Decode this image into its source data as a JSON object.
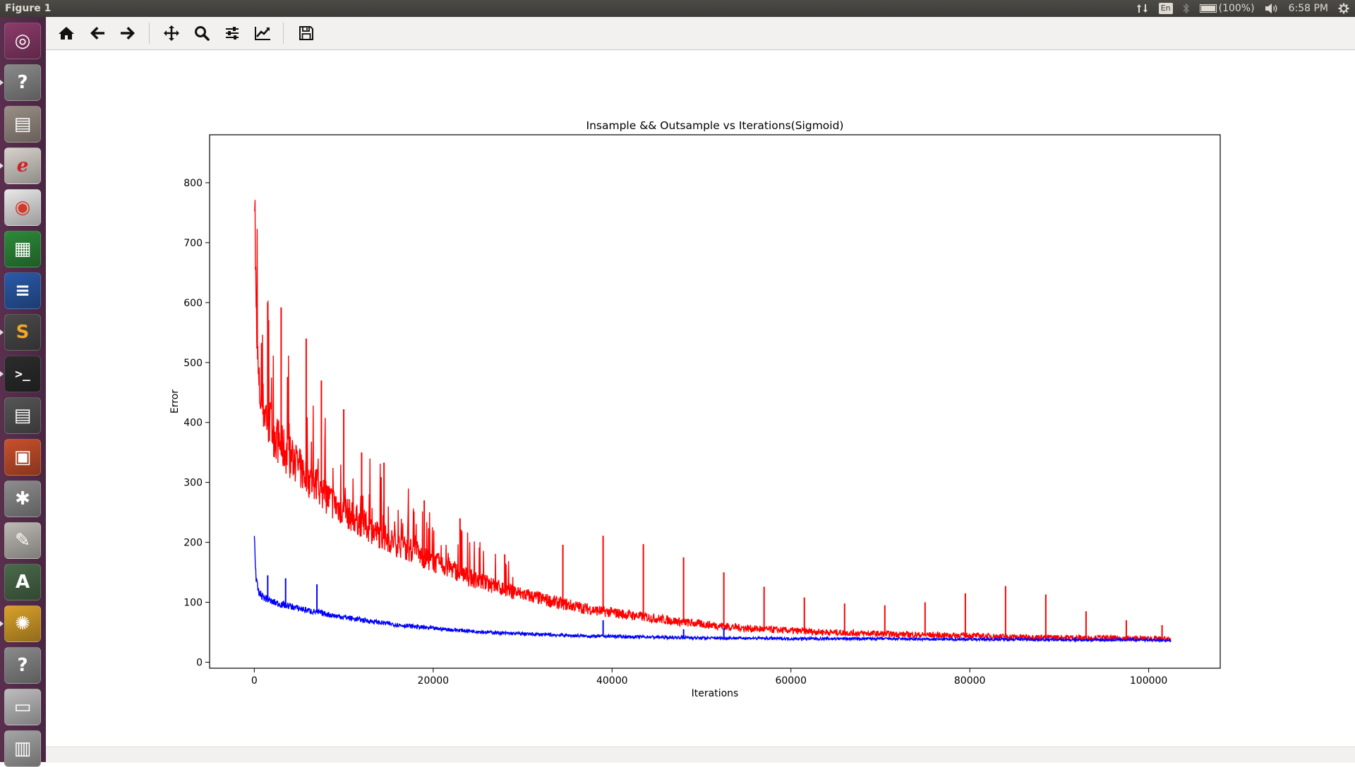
{
  "window": {
    "title": "Figure 1"
  },
  "tray": {
    "language": "En",
    "battery_text": "(100%)",
    "battery_level": 1.0,
    "time": "6:58 PM",
    "icons": [
      "network-updown-icon",
      "keyboard-language-icon",
      "bluetooth-icon",
      "battery-icon",
      "volume-icon",
      "settings-gear-icon"
    ]
  },
  "launcher": {
    "items": [
      {
        "name": "ubuntu-dash",
        "icon": "ubuntu-logo-icon",
        "color": "#8c3b6b"
      },
      {
        "name": "unknown-app",
        "icon": "question-icon",
        "color": "#8a8a8a"
      },
      {
        "name": "file-manager",
        "icon": "file-cabinet-icon",
        "color": "#9a8f86"
      },
      {
        "name": "document-viewer",
        "icon": "evince-icon",
        "color": "#d7d2cc"
      },
      {
        "name": "chrome",
        "icon": "chrome-icon",
        "color": "#e8e8e8"
      },
      {
        "name": "spreadsheet",
        "icon": "calc-icon",
        "color": "#2d8a3a"
      },
      {
        "name": "writer",
        "icon": "writer-icon",
        "color": "#2a5aa8"
      },
      {
        "name": "sublime-text",
        "icon": "sublime-icon",
        "color": "#4a4a4a"
      },
      {
        "name": "terminal",
        "icon": "terminal-icon",
        "color": "#2c2c2c"
      },
      {
        "name": "video-editor",
        "icon": "clapper-icon",
        "color": "#555555"
      },
      {
        "name": "impress",
        "icon": "impress-icon",
        "color": "#c9502b"
      },
      {
        "name": "system-tools",
        "icon": "wrench-gear-icon",
        "color": "#8d8d8d"
      },
      {
        "name": "text-editor",
        "icon": "text-editor-icon",
        "color": "#bdbab4"
      },
      {
        "name": "software-updater",
        "icon": "updater-icon",
        "color": "#4a6a4a"
      },
      {
        "name": "pinwheel-app",
        "icon": "pinwheel-icon",
        "color": "#d9a12a"
      },
      {
        "name": "unknown-app-2",
        "icon": "question-icon",
        "color": "#8a8a8a"
      },
      {
        "name": "disk-drive",
        "icon": "drive-icon",
        "color": "#bdbdbd"
      },
      {
        "name": "trash",
        "icon": "trash-icon",
        "color": "#a5a5a5"
      }
    ]
  },
  "toolbar": {
    "buttons": [
      {
        "name": "home-button",
        "icon": "home-icon"
      },
      {
        "name": "back-button",
        "icon": "arrow-left-icon"
      },
      {
        "name": "forward-button",
        "icon": "arrow-right-icon"
      },
      {
        "name": "pan-button",
        "icon": "move-icon"
      },
      {
        "name": "zoom-button",
        "icon": "magnifier-icon"
      },
      {
        "name": "configure-subplots-button",
        "icon": "sliders-icon"
      },
      {
        "name": "edit-axis-button",
        "icon": "line-chart-icon"
      },
      {
        "name": "save-button",
        "icon": "floppy-icon"
      }
    ]
  },
  "chart_data": {
    "type": "line",
    "title": "Insample && Outsample vs Iterations(Sigmoid)",
    "xlabel": "Iterations",
    "ylabel": "Error",
    "xlim": [
      -5000,
      108000
    ],
    "ylim": [
      -10,
      880
    ],
    "xticks": [
      0,
      20000,
      40000,
      60000,
      80000,
      100000
    ],
    "yticks": [
      0,
      100,
      200,
      300,
      400,
      500,
      600,
      700,
      800
    ],
    "grid": false,
    "legend": "none",
    "series": [
      {
        "color": "#ff0000",
        "x": [
          0,
          200,
          500,
          1000,
          2000,
          3000,
          4000,
          5000,
          6000,
          7000,
          8000,
          9000,
          10000,
          12000,
          14000,
          16000,
          18000,
          20000,
          22000,
          24000,
          26000,
          28000,
          30000,
          32000,
          34000,
          36000,
          38000,
          40000,
          42000,
          44000,
          46000,
          48000,
          50000,
          55000,
          60000,
          65000,
          70000,
          75000,
          80000,
          85000,
          90000,
          95000,
          100000,
          102500
        ],
        "y": [
          835,
          560,
          450,
          420,
          385,
          355,
          340,
          320,
          305,
          290,
          275,
          260,
          250,
          230,
          210,
          195,
          180,
          165,
          155,
          140,
          130,
          120,
          112,
          105,
          98,
          92,
          86,
          82,
          78,
          74,
          70,
          66,
          63,
          56,
          52,
          49,
          47,
          45,
          44,
          42,
          41,
          40,
          39,
          38
        ],
        "spikes": [
          {
            "x": 0,
            "y": 835
          },
          {
            "x": 1500,
            "y": 600
          },
          {
            "x": 3000,
            "y": 592
          },
          {
            "x": 5800,
            "y": 540
          },
          {
            "x": 7500,
            "y": 470
          },
          {
            "x": 10000,
            "y": 422
          },
          {
            "x": 12000,
            "y": 350
          },
          {
            "x": 14500,
            "y": 333
          },
          {
            "x": 19000,
            "y": 270
          },
          {
            "x": 23000,
            "y": 240
          },
          {
            "x": 28000,
            "y": 180
          },
          {
            "x": 34500,
            "y": 196
          },
          {
            "x": 39000,
            "y": 211
          },
          {
            "x": 43500,
            "y": 197
          },
          {
            "x": 48000,
            "y": 175
          },
          {
            "x": 52500,
            "y": 150
          },
          {
            "x": 57000,
            "y": 126
          },
          {
            "x": 61500,
            "y": 108
          },
          {
            "x": 66000,
            "y": 98
          },
          {
            "x": 70500,
            "y": 95
          },
          {
            "x": 75000,
            "y": 100
          },
          {
            "x": 79500,
            "y": 115
          },
          {
            "x": 84000,
            "y": 127
          },
          {
            "x": 88500,
            "y": 113
          },
          {
            "x": 93000,
            "y": 85
          },
          {
            "x": 97500,
            "y": 70
          },
          {
            "x": 101500,
            "y": 62
          }
        ]
      },
      {
        "color": "#0000ff",
        "x": [
          0,
          200,
          500,
          1000,
          2000,
          3000,
          4000,
          5000,
          6000,
          7000,
          8000,
          9000,
          10000,
          12000,
          14000,
          16000,
          18000,
          20000,
          22000,
          24000,
          26000,
          28000,
          30000,
          32000,
          34000,
          36000,
          38000,
          40000,
          42000,
          44000,
          46000,
          48000,
          50000,
          55000,
          60000,
          65000,
          70000,
          75000,
          80000,
          85000,
          90000,
          95000,
          100000,
          102500
        ],
        "y": [
          210,
          135,
          115,
          108,
          100,
          96,
          93,
          89,
          86,
          83,
          80,
          77,
          75,
          70,
          66,
          62,
          59,
          56,
          54,
          52,
          50,
          48,
          47,
          46,
          45,
          44,
          43,
          43,
          42,
          42,
          41,
          41,
          40,
          40,
          39,
          39,
          39,
          38,
          38,
          38,
          37,
          37,
          37,
          36
        ],
        "spikes": [
          {
            "x": 0,
            "y": 210
          },
          {
            "x": 1500,
            "y": 145
          },
          {
            "x": 3500,
            "y": 140
          },
          {
            "x": 7000,
            "y": 130
          },
          {
            "x": 39000,
            "y": 70
          },
          {
            "x": 48000,
            "y": 55
          },
          {
            "x": 52500,
            "y": 58
          }
        ]
      }
    ]
  }
}
